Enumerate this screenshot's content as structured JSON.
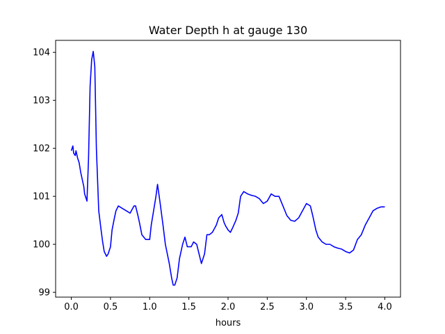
{
  "chart_data": {
    "type": "line",
    "title": "Water Depth h at gauge 130",
    "xlabel": "hours",
    "ylabel": "",
    "xlim": [
      -0.2,
      4.2
    ],
    "ylim": [
      98.9,
      104.25
    ],
    "xticks": [
      0.0,
      0.5,
      1.0,
      1.5,
      2.0,
      2.5,
      3.0,
      3.5,
      4.0
    ],
    "xtick_labels": [
      "0.0",
      "0.5",
      "1.0",
      "1.5",
      "2.0",
      "2.5",
      "3.0",
      "3.5",
      "4.0"
    ],
    "yticks": [
      99,
      100,
      101,
      102,
      103,
      104
    ],
    "ytick_labels": [
      "99",
      "100",
      "101",
      "102",
      "103",
      "104"
    ],
    "grid": false,
    "series": [
      {
        "name": "",
        "color": "#0000ff",
        "x": [
          0.0,
          0.02,
          0.03,
          0.05,
          0.06,
          0.08,
          0.1,
          0.11,
          0.12,
          0.14,
          0.16,
          0.17,
          0.18,
          0.2,
          0.22,
          0.24,
          0.26,
          0.28,
          0.3,
          0.32,
          0.35,
          0.38,
          0.4,
          0.42,
          0.45,
          0.47,
          0.5,
          0.52,
          0.55,
          0.57,
          0.6,
          0.62,
          0.65,
          0.7,
          0.75,
          0.8,
          0.82,
          0.85,
          0.87,
          0.9,
          0.95,
          1.0,
          1.02,
          1.05,
          1.08,
          1.1,
          1.13,
          1.17,
          1.2,
          1.25,
          1.28,
          1.3,
          1.32,
          1.35,
          1.38,
          1.42,
          1.45,
          1.48,
          1.5,
          1.53,
          1.56,
          1.6,
          1.63,
          1.66,
          1.7,
          1.73,
          1.76,
          1.8,
          1.85,
          1.88,
          1.92,
          1.95,
          1.97,
          2.0,
          2.03,
          2.06,
          2.1,
          2.13,
          2.16,
          2.2,
          2.25,
          2.3,
          2.35,
          2.4,
          2.45,
          2.5,
          2.55,
          2.6,
          2.65,
          2.7,
          2.75,
          2.8,
          2.85,
          2.9,
          2.95,
          3.0,
          3.05,
          3.08,
          3.12,
          3.15,
          3.2,
          3.25,
          3.3,
          3.35,
          3.4,
          3.45,
          3.5,
          3.55,
          3.6,
          3.65,
          3.7,
          3.75,
          3.8,
          3.85,
          3.9,
          3.95,
          4.0
        ],
        "y": [
          101.95,
          102.05,
          101.9,
          101.85,
          101.95,
          101.8,
          101.7,
          101.6,
          101.5,
          101.35,
          101.2,
          101.05,
          101.0,
          100.9,
          101.8,
          103.3,
          103.85,
          104.02,
          103.7,
          102.0,
          100.7,
          100.3,
          100.05,
          99.85,
          99.75,
          99.8,
          99.95,
          100.3,
          100.55,
          100.7,
          100.8,
          100.78,
          100.75,
          100.7,
          100.65,
          100.8,
          100.8,
          100.6,
          100.45,
          100.2,
          100.1,
          100.1,
          100.4,
          100.7,
          101.0,
          101.25,
          100.9,
          100.4,
          100.0,
          99.6,
          99.3,
          99.15,
          99.15,
          99.3,
          99.7,
          100.0,
          100.15,
          99.95,
          99.95,
          99.95,
          100.05,
          100.0,
          99.8,
          99.6,
          99.8,
          100.2,
          100.2,
          100.25,
          100.4,
          100.55,
          100.62,
          100.45,
          100.38,
          100.3,
          100.25,
          100.35,
          100.5,
          100.65,
          101.0,
          101.1,
          101.05,
          101.02,
          101.0,
          100.95,
          100.85,
          100.9,
          101.05,
          101.0,
          101.0,
          100.8,
          100.6,
          100.5,
          100.48,
          100.55,
          100.7,
          100.85,
          100.8,
          100.6,
          100.3,
          100.15,
          100.05,
          100.0,
          100.0,
          99.95,
          99.92,
          99.9,
          99.85,
          99.82,
          99.88,
          100.1,
          100.2,
          100.4,
          100.55,
          100.7,
          100.75,
          100.78,
          100.78
        ]
      }
    ]
  }
}
